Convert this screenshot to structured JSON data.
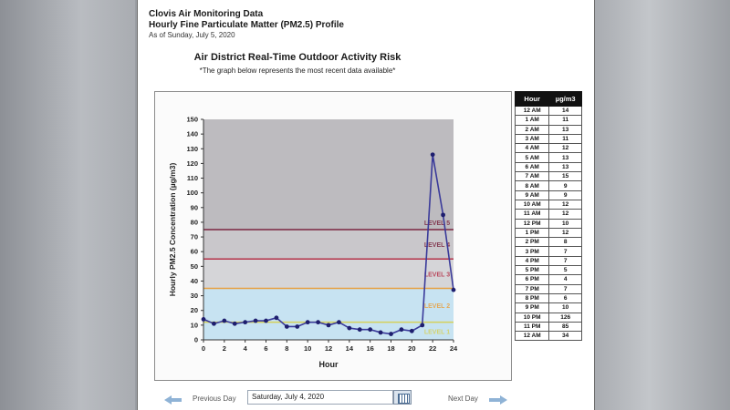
{
  "header": {
    "title": "Clovis Air Monitoring Data",
    "subtitle": "Hourly Fine Particulate Matter (PM2.5) Profile",
    "as_of": "As of Sunday, July 5, 2020"
  },
  "risk": {
    "title": "Air District Real-Time Outdoor Activity Risk",
    "note": "*The graph below represents the most recent data available*"
  },
  "chart_data": {
    "type": "line",
    "title": "",
    "xlabel": "Hour",
    "ylabel": "Hourly PM2.5 Concentration (µg/m3)",
    "xlim": [
      0,
      24
    ],
    "ylim": [
      0,
      150
    ],
    "xticks": [
      0,
      2,
      4,
      6,
      8,
      10,
      12,
      14,
      16,
      18,
      20,
      22,
      24
    ],
    "yticks": [
      0,
      10,
      20,
      30,
      40,
      50,
      60,
      70,
      80,
      90,
      100,
      110,
      120,
      130,
      140,
      150
    ],
    "x": [
      0,
      1,
      2,
      3,
      4,
      5,
      6,
      7,
      8,
      9,
      10,
      11,
      12,
      13,
      14,
      15,
      16,
      17,
      18,
      19,
      20,
      21,
      22,
      23,
      24
    ],
    "series": [
      {
        "values": [
          14,
          11,
          13,
          11,
          12,
          13,
          13,
          15,
          9,
          9,
          12,
          12,
          10,
          12,
          8,
          7,
          7,
          5,
          4,
          7,
          6,
          10,
          126,
          85,
          34
        ]
      }
    ],
    "grid": false,
    "bands": [
      {
        "label": "LEVEL 1",
        "from": 0,
        "to": 12,
        "color": "#c7e3f2",
        "line": "#d6d15a"
      },
      {
        "label": "LEVEL 2",
        "from": 12,
        "to": 35,
        "color": "#c7e3f2",
        "line": "#e8a040"
      },
      {
        "label": "LEVEL 3",
        "from": 35,
        "to": 55,
        "color": "#d5d5d8",
        "line": "#b5334a"
      },
      {
        "label": "LEVEL 4",
        "from": 55,
        "to": 75,
        "color": "#c9c7cb",
        "line": "#7a2540"
      },
      {
        "label": "LEVEL 5",
        "from": 75,
        "to": 150,
        "color": "#bdbbbf",
        "line": ""
      }
    ],
    "colors": {
      "line": "#3a3a9a",
      "point": "#1e1e6e"
    }
  },
  "table": {
    "headers": [
      "Hour",
      "µg/m3"
    ],
    "rows": [
      [
        "12 AM",
        "14"
      ],
      [
        "1 AM",
        "11"
      ],
      [
        "2 AM",
        "13"
      ],
      [
        "3 AM",
        "11"
      ],
      [
        "4 AM",
        "12"
      ],
      [
        "5 AM",
        "13"
      ],
      [
        "6 AM",
        "13"
      ],
      [
        "7 AM",
        "15"
      ],
      [
        "8 AM",
        "9"
      ],
      [
        "9 AM",
        "9"
      ],
      [
        "10 AM",
        "12"
      ],
      [
        "11 AM",
        "12"
      ],
      [
        "12 PM",
        "10"
      ],
      [
        "1 PM",
        "12"
      ],
      [
        "2 PM",
        "8"
      ],
      [
        "3 PM",
        "7"
      ],
      [
        "4 PM",
        "7"
      ],
      [
        "5 PM",
        "5"
      ],
      [
        "6 PM",
        "4"
      ],
      [
        "7 PM",
        "7"
      ],
      [
        "8 PM",
        "6"
      ],
      [
        "9 PM",
        "10"
      ],
      [
        "10 PM",
        "126"
      ],
      [
        "11 PM",
        "85"
      ],
      [
        "12 AM",
        "34"
      ]
    ]
  },
  "nav": {
    "prev_label": "Previous Day",
    "date_value": "Saturday, July 4, 2020",
    "next_label": "Next Day"
  }
}
